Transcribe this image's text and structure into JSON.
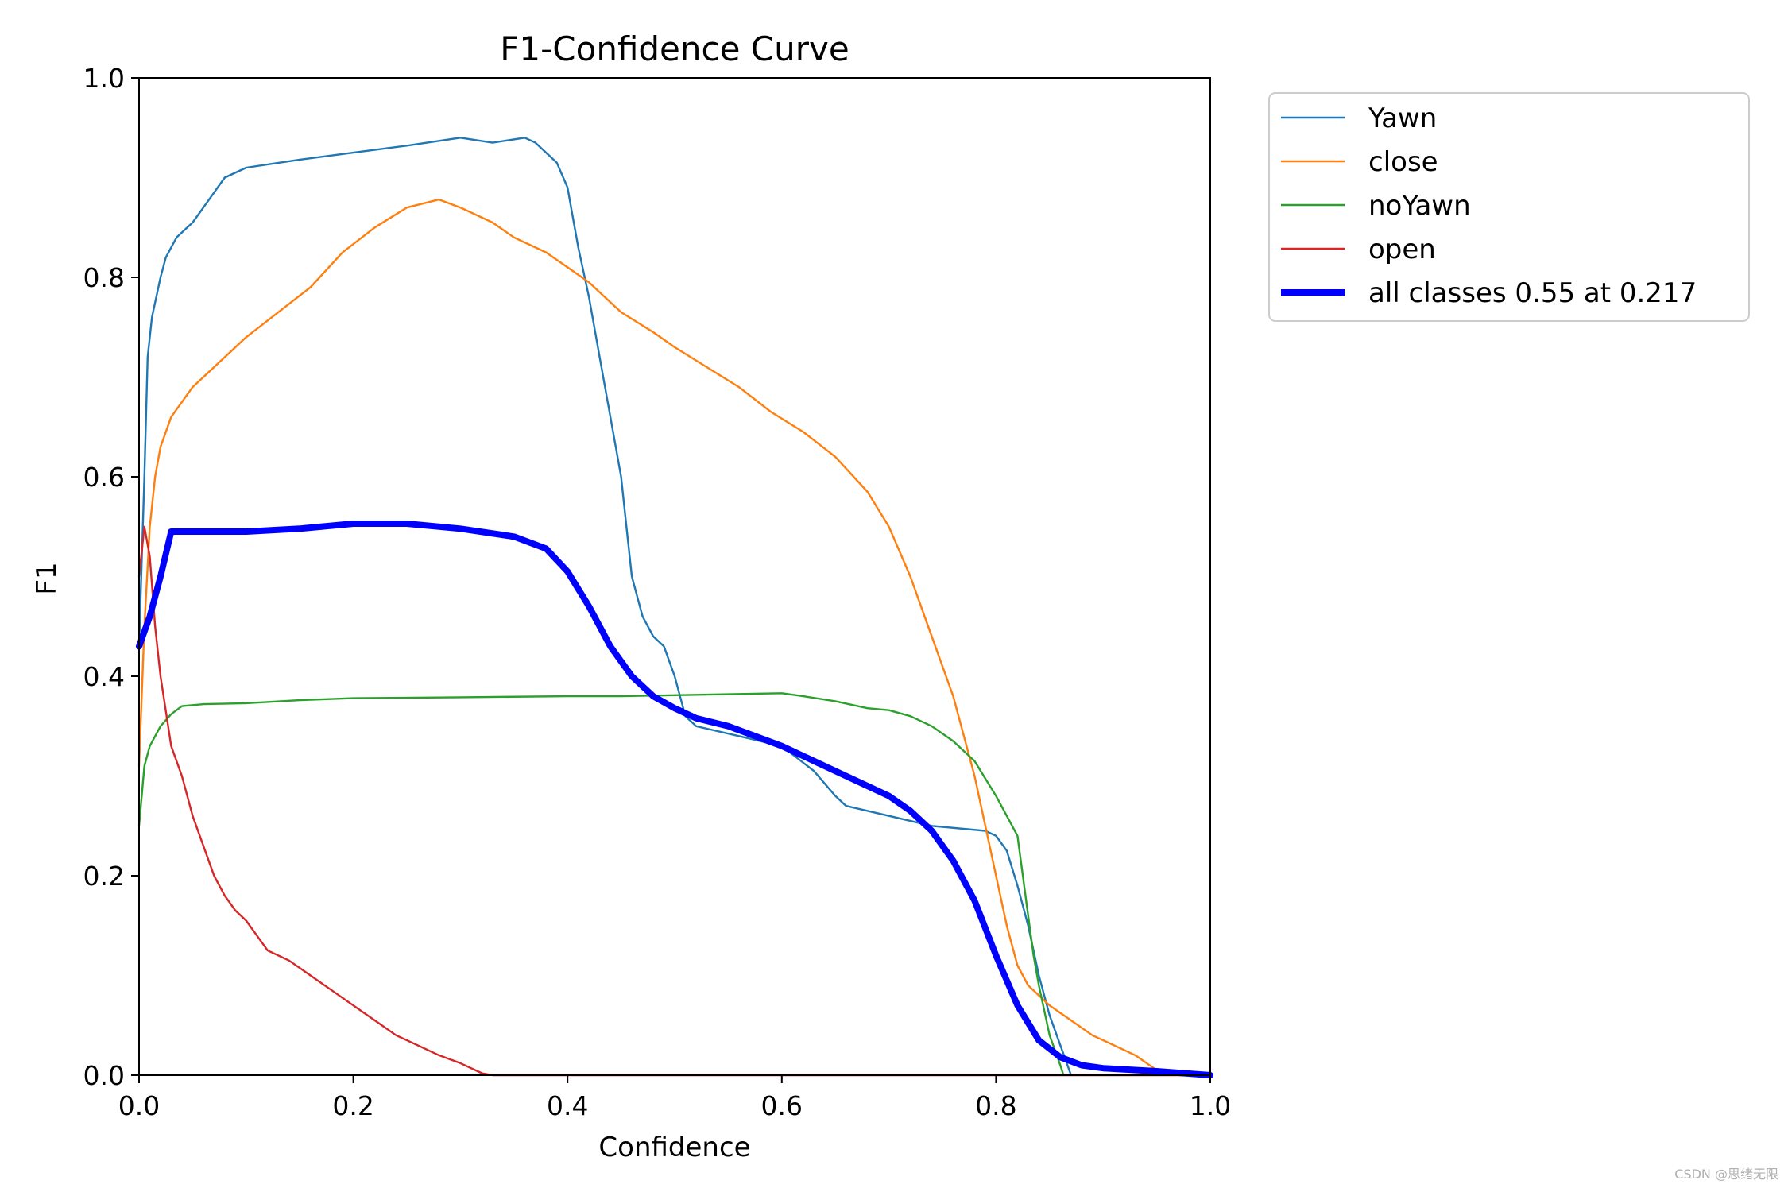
{
  "chart_data": {
    "type": "line",
    "title": "F1-Confidence Curve",
    "xlabel": "Confidence",
    "ylabel": "F1",
    "xlim": [
      0.0,
      1.0
    ],
    "ylim": [
      0.0,
      1.0
    ],
    "xticks": [
      "0.0",
      "0.2",
      "0.4",
      "0.6",
      "0.8",
      "1.0"
    ],
    "yticks": [
      "0.0",
      "0.2",
      "0.4",
      "0.6",
      "0.8",
      "1.0"
    ],
    "grid": false,
    "legend_position": "outside-top-right",
    "series": [
      {
        "name": "Yawn",
        "color": "#1f77b4",
        "width": "thin",
        "points": [
          [
            0.0,
            0.43
          ],
          [
            0.005,
            0.6
          ],
          [
            0.008,
            0.72
          ],
          [
            0.012,
            0.76
          ],
          [
            0.016,
            0.78
          ],
          [
            0.02,
            0.8
          ],
          [
            0.025,
            0.82
          ],
          [
            0.03,
            0.83
          ],
          [
            0.035,
            0.84
          ],
          [
            0.04,
            0.845
          ],
          [
            0.05,
            0.855
          ],
          [
            0.06,
            0.87
          ],
          [
            0.07,
            0.885
          ],
          [
            0.08,
            0.9
          ],
          [
            0.1,
            0.91
          ],
          [
            0.15,
            0.918
          ],
          [
            0.2,
            0.925
          ],
          [
            0.25,
            0.932
          ],
          [
            0.3,
            0.94
          ],
          [
            0.33,
            0.935
          ],
          [
            0.36,
            0.94
          ],
          [
            0.37,
            0.935
          ],
          [
            0.38,
            0.925
          ],
          [
            0.39,
            0.915
          ],
          [
            0.4,
            0.89
          ],
          [
            0.405,
            0.86
          ],
          [
            0.41,
            0.83
          ],
          [
            0.42,
            0.78
          ],
          [
            0.43,
            0.72
          ],
          [
            0.44,
            0.66
          ],
          [
            0.45,
            0.6
          ],
          [
            0.455,
            0.55
          ],
          [
            0.46,
            0.5
          ],
          [
            0.47,
            0.46
          ],
          [
            0.48,
            0.44
          ],
          [
            0.49,
            0.43
          ],
          [
            0.5,
            0.4
          ],
          [
            0.51,
            0.36
          ],
          [
            0.52,
            0.35
          ],
          [
            0.56,
            0.34
          ],
          [
            0.6,
            0.33
          ],
          [
            0.63,
            0.305
          ],
          [
            0.65,
            0.28
          ],
          [
            0.66,
            0.27
          ],
          [
            0.7,
            0.26
          ],
          [
            0.74,
            0.25
          ],
          [
            0.79,
            0.245
          ],
          [
            0.8,
            0.24
          ],
          [
            0.81,
            0.225
          ],
          [
            0.82,
            0.19
          ],
          [
            0.83,
            0.15
          ],
          [
            0.84,
            0.1
          ],
          [
            0.85,
            0.06
          ],
          [
            0.86,
            0.03
          ],
          [
            0.87,
            0.0
          ]
        ]
      },
      {
        "name": "close",
        "color": "#ff7f0e",
        "width": "thin",
        "points": [
          [
            0.0,
            0.31
          ],
          [
            0.005,
            0.45
          ],
          [
            0.01,
            0.55
          ],
          [
            0.015,
            0.6
          ],
          [
            0.02,
            0.63
          ],
          [
            0.03,
            0.66
          ],
          [
            0.04,
            0.675
          ],
          [
            0.05,
            0.69
          ],
          [
            0.07,
            0.71
          ],
          [
            0.1,
            0.74
          ],
          [
            0.13,
            0.765
          ],
          [
            0.16,
            0.79
          ],
          [
            0.19,
            0.825
          ],
          [
            0.22,
            0.85
          ],
          [
            0.25,
            0.87
          ],
          [
            0.28,
            0.878
          ],
          [
            0.3,
            0.87
          ],
          [
            0.33,
            0.855
          ],
          [
            0.35,
            0.84
          ],
          [
            0.38,
            0.825
          ],
          [
            0.4,
            0.81
          ],
          [
            0.42,
            0.795
          ],
          [
            0.45,
            0.765
          ],
          [
            0.48,
            0.745
          ],
          [
            0.5,
            0.73
          ],
          [
            0.53,
            0.71
          ],
          [
            0.56,
            0.69
          ],
          [
            0.59,
            0.665
          ],
          [
            0.62,
            0.645
          ],
          [
            0.65,
            0.62
          ],
          [
            0.68,
            0.585
          ],
          [
            0.7,
            0.55
          ],
          [
            0.72,
            0.5
          ],
          [
            0.74,
            0.44
          ],
          [
            0.76,
            0.38
          ],
          [
            0.78,
            0.3
          ],
          [
            0.8,
            0.2
          ],
          [
            0.81,
            0.15
          ],
          [
            0.82,
            0.11
          ],
          [
            0.83,
            0.09
          ],
          [
            0.85,
            0.07
          ],
          [
            0.87,
            0.055
          ],
          [
            0.89,
            0.04
          ],
          [
            0.91,
            0.03
          ],
          [
            0.93,
            0.02
          ],
          [
            0.95,
            0.005
          ],
          [
            0.96,
            0.0
          ]
        ]
      },
      {
        "name": "noYawn",
        "color": "#2ca02c",
        "width": "thin",
        "points": [
          [
            0.0,
            0.25
          ],
          [
            0.005,
            0.31
          ],
          [
            0.01,
            0.33
          ],
          [
            0.02,
            0.35
          ],
          [
            0.03,
            0.362
          ],
          [
            0.04,
            0.37
          ],
          [
            0.06,
            0.372
          ],
          [
            0.1,
            0.373
          ],
          [
            0.15,
            0.376
          ],
          [
            0.2,
            0.378
          ],
          [
            0.3,
            0.379
          ],
          [
            0.4,
            0.38
          ],
          [
            0.45,
            0.38
          ],
          [
            0.5,
            0.381
          ],
          [
            0.55,
            0.382
          ],
          [
            0.6,
            0.383
          ],
          [
            0.62,
            0.38
          ],
          [
            0.65,
            0.375
          ],
          [
            0.68,
            0.368
          ],
          [
            0.7,
            0.366
          ],
          [
            0.72,
            0.36
          ],
          [
            0.74,
            0.35
          ],
          [
            0.76,
            0.335
          ],
          [
            0.78,
            0.315
          ],
          [
            0.8,
            0.28
          ],
          [
            0.81,
            0.26
          ],
          [
            0.82,
            0.24
          ],
          [
            0.83,
            0.16
          ],
          [
            0.835,
            0.12
          ],
          [
            0.84,
            0.09
          ],
          [
            0.85,
            0.04
          ],
          [
            0.86,
            0.01
          ],
          [
            0.863,
            0.0
          ]
        ]
      },
      {
        "name": "open",
        "color": "#d62728",
        "width": "thin",
        "points": [
          [
            0.0,
            0.5
          ],
          [
            0.005,
            0.55
          ],
          [
            0.01,
            0.52
          ],
          [
            0.015,
            0.45
          ],
          [
            0.02,
            0.4
          ],
          [
            0.03,
            0.33
          ],
          [
            0.04,
            0.3
          ],
          [
            0.05,
            0.26
          ],
          [
            0.06,
            0.23
          ],
          [
            0.07,
            0.2
          ],
          [
            0.08,
            0.18
          ],
          [
            0.09,
            0.165
          ],
          [
            0.1,
            0.155
          ],
          [
            0.11,
            0.14
          ],
          [
            0.12,
            0.125
          ],
          [
            0.14,
            0.115
          ],
          [
            0.16,
            0.1
          ],
          [
            0.18,
            0.085
          ],
          [
            0.2,
            0.07
          ],
          [
            0.22,
            0.055
          ],
          [
            0.24,
            0.04
          ],
          [
            0.26,
            0.03
          ],
          [
            0.28,
            0.02
          ],
          [
            0.3,
            0.012
          ],
          [
            0.32,
            0.002
          ],
          [
            0.33,
            0.0
          ],
          [
            1.0,
            0.0
          ]
        ]
      },
      {
        "name": "all classes 0.55 at 0.217",
        "color": "#0000ff",
        "width": "thick",
        "points": [
          [
            0.0,
            0.43
          ],
          [
            0.01,
            0.46
          ],
          [
            0.02,
            0.5
          ],
          [
            0.03,
            0.545
          ],
          [
            0.05,
            0.545
          ],
          [
            0.1,
            0.545
          ],
          [
            0.15,
            0.548
          ],
          [
            0.2,
            0.553
          ],
          [
            0.25,
            0.553
          ],
          [
            0.3,
            0.548
          ],
          [
            0.35,
            0.54
          ],
          [
            0.38,
            0.528
          ],
          [
            0.4,
            0.505
          ],
          [
            0.42,
            0.47
          ],
          [
            0.44,
            0.43
          ],
          [
            0.46,
            0.4
          ],
          [
            0.48,
            0.38
          ],
          [
            0.5,
            0.368
          ],
          [
            0.52,
            0.358
          ],
          [
            0.55,
            0.35
          ],
          [
            0.6,
            0.33
          ],
          [
            0.65,
            0.305
          ],
          [
            0.7,
            0.28
          ],
          [
            0.72,
            0.265
          ],
          [
            0.74,
            0.245
          ],
          [
            0.76,
            0.215
          ],
          [
            0.78,
            0.175
          ],
          [
            0.8,
            0.12
          ],
          [
            0.82,
            0.07
          ],
          [
            0.84,
            0.035
          ],
          [
            0.86,
            0.018
          ],
          [
            0.88,
            0.01
          ],
          [
            0.9,
            0.007
          ],
          [
            0.95,
            0.004
          ],
          [
            1.0,
            0.0
          ]
        ]
      }
    ]
  },
  "watermark": "CSDN @思绪无限"
}
